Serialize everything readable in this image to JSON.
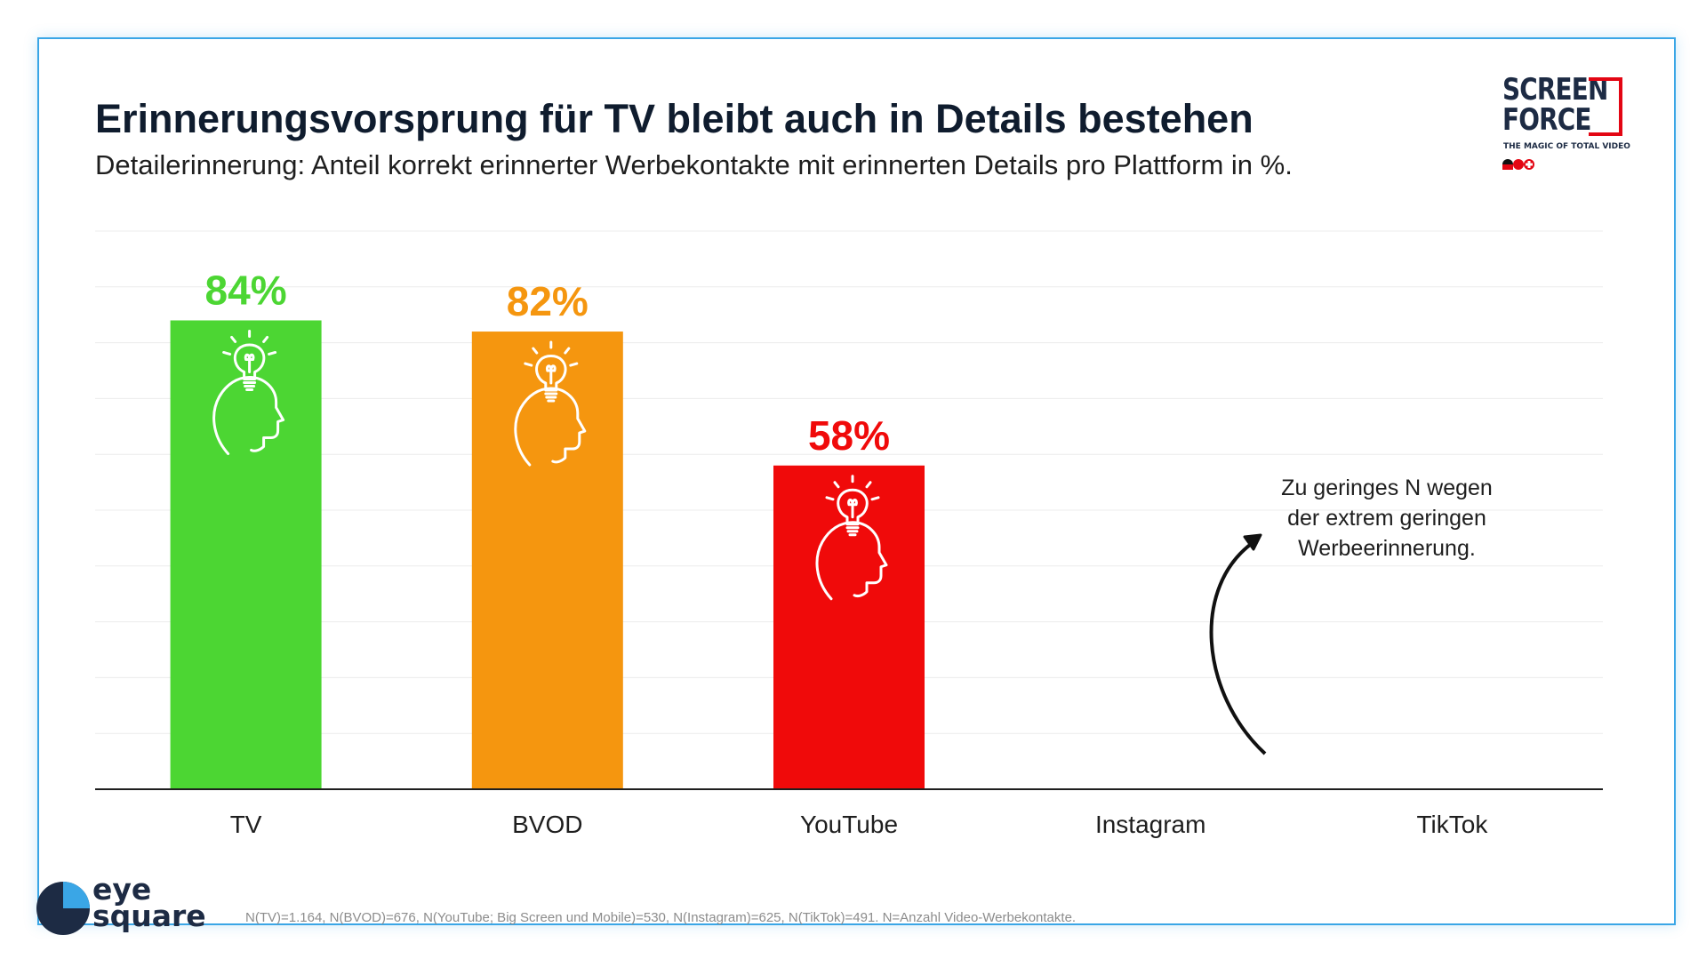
{
  "title": "Erinnerungsvorsprung für TV bleibt auch in Details bestehen",
  "subtitle": "Detailerinnerung: Anteil korrekt erinnerter Werbekontakte mit erinnerten Details pro Plattform in %.",
  "logos": {
    "screenforce": {
      "word1": "SCREEN",
      "word2": "FORCE",
      "tagline": "THE MAGIC OF TOTAL VIDEO",
      "accent": "#e30613"
    },
    "eyesquare": {
      "word1": "eye",
      "word2": "square"
    }
  },
  "annotation": {
    "line1": "Zu geringes N wegen",
    "line2": "der extrem geringen",
    "line3": "Werbeerinnerung."
  },
  "footnote": "N(TV)=1.164, N(BVOD)=676, N(YouTube; Big Screen und Mobile)=530, N(Instagram)=625, N(TikTok)=491. N=Anzahl Video-Werbekontakte.",
  "chart_data": {
    "type": "bar",
    "categories": [
      "TV",
      "BVOD",
      "YouTube",
      "Instagram",
      "TikTok"
    ],
    "values": [
      84,
      82,
      58,
      null,
      null
    ],
    "labels": [
      "84%",
      "82%",
      "58%",
      "",
      ""
    ],
    "colors": [
      "#4cd633",
      "#f5960f",
      "#f00a0a",
      "",
      ""
    ],
    "icon": "head-lightbulb-icon",
    "ylim": [
      0,
      100
    ],
    "grid": true
  }
}
